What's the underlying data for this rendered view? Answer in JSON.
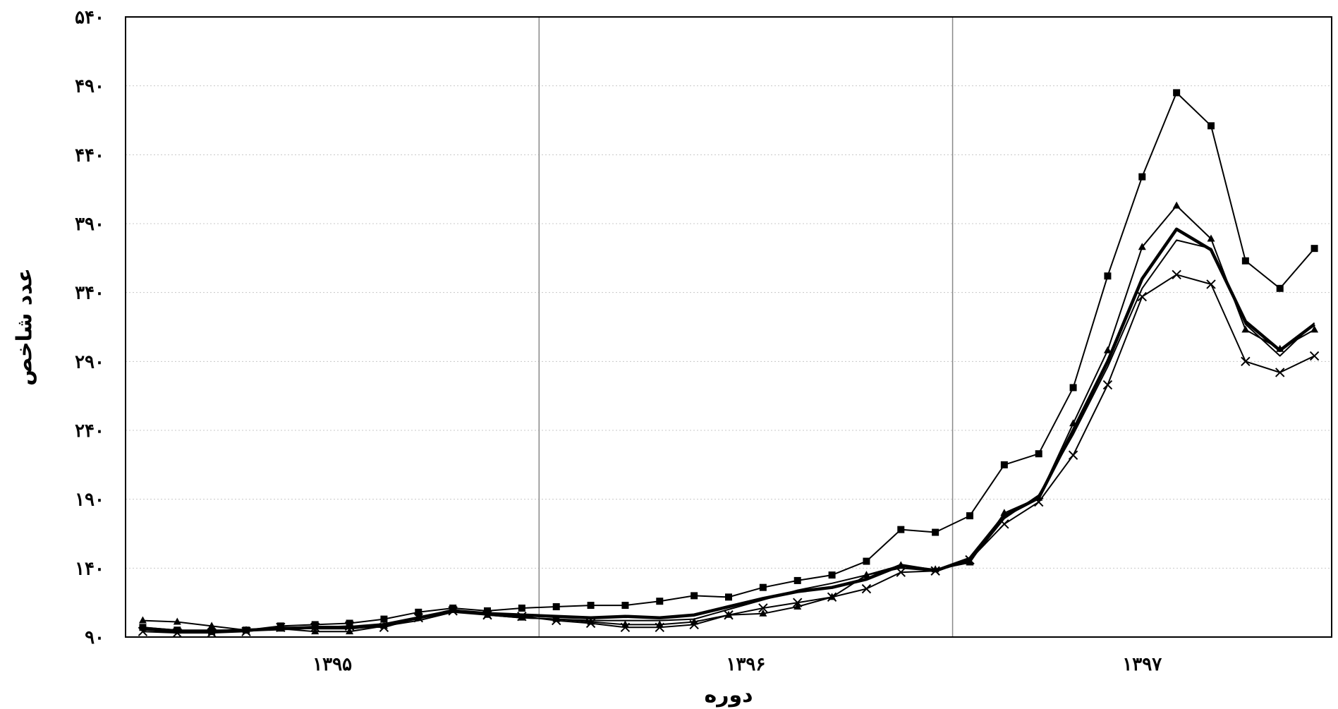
{
  "chart_data": {
    "type": "line",
    "title": "",
    "xlabel": "دوره",
    "ylabel": "عدد شاخص",
    "ylim": [
      90,
      540
    ],
    "y_ticks": [
      90,
      140,
      190,
      240,
      290,
      340,
      390,
      440,
      490,
      540
    ],
    "y_tick_labels": [
      "۹۰",
      "۱۴۰",
      "۱۹۰",
      "۲۴۰",
      "۲۹۰",
      "۳۴۰",
      "۳۹۰",
      "۴۴۰",
      "۴۹۰",
      "۵۴۰"
    ],
    "x_groups": [
      {
        "label": "۱۳۹۵",
        "from": 1,
        "to": 12
      },
      {
        "label": "۱۳۹۶",
        "from": 13,
        "to": 24
      },
      {
        "label": "۱۳۹۷",
        "from": 25,
        "to": 35
      }
    ],
    "x": [
      1,
      2,
      3,
      4,
      5,
      6,
      7,
      8,
      9,
      10,
      11,
      12,
      13,
      14,
      15,
      16,
      17,
      18,
      19,
      20,
      21,
      22,
      23,
      24,
      25,
      26,
      27,
      28,
      29,
      30,
      31,
      32,
      33,
      34,
      35
    ],
    "grid": true,
    "legend": "none",
    "series": [
      {
        "marker": "square",
        "width": 2,
        "values": [
          97,
          95,
          94,
          95,
          98,
          99,
          100,
          103,
          108,
          111,
          109,
          111,
          112,
          113,
          113,
          116,
          120,
          119,
          126,
          131,
          135,
          145,
          168,
          166,
          178,
          215,
          223,
          271,
          352,
          424,
          485,
          461,
          363,
          343,
          372
        ]
      },
      {
        "marker": "triangle",
        "width": 2,
        "values": [
          102,
          101,
          98,
          95,
          96,
          94,
          94,
          98,
          104,
          110,
          106,
          104,
          103,
          101,
          99,
          99,
          101,
          106,
          107,
          112,
          119,
          135,
          142,
          139,
          144,
          180,
          191,
          245,
          298,
          373,
          403,
          379,
          313,
          299,
          313
        ]
      },
      {
        "marker": "none",
        "width": 4.5,
        "values": [
          96,
          94,
          94,
          95,
          96,
          97,
          97,
          99,
          104,
          109,
          107,
          106,
          105,
          104,
          105,
          104,
          106,
          112,
          118,
          123,
          126,
          132,
          142,
          138,
          147,
          178,
          191,
          240,
          290,
          350,
          386,
          371,
          319,
          298,
          317
        ]
      },
      {
        "marker": "none",
        "width": 2,
        "values": [
          97,
          95,
          95,
          95,
          97,
          96,
          96,
          98,
          102,
          108,
          106,
          104,
          103,
          102,
          102,
          102,
          103,
          110,
          117,
          124,
          129,
          135,
          140,
          138,
          145,
          176,
          193,
          237,
          286,
          343,
          378,
          372,
          317,
          294,
          318
        ]
      },
      {
        "marker": "cross",
        "width": 2,
        "values": [
          94,
          93,
          93,
          94,
          97,
          97,
          98,
          97,
          104,
          109,
          106,
          105,
          102,
          100,
          97,
          97,
          99,
          106,
          111,
          115,
          119,
          125,
          137,
          138,
          146,
          172,
          188,
          222,
          273,
          337,
          353,
          346,
          290,
          282,
          294
        ]
      }
    ]
  }
}
